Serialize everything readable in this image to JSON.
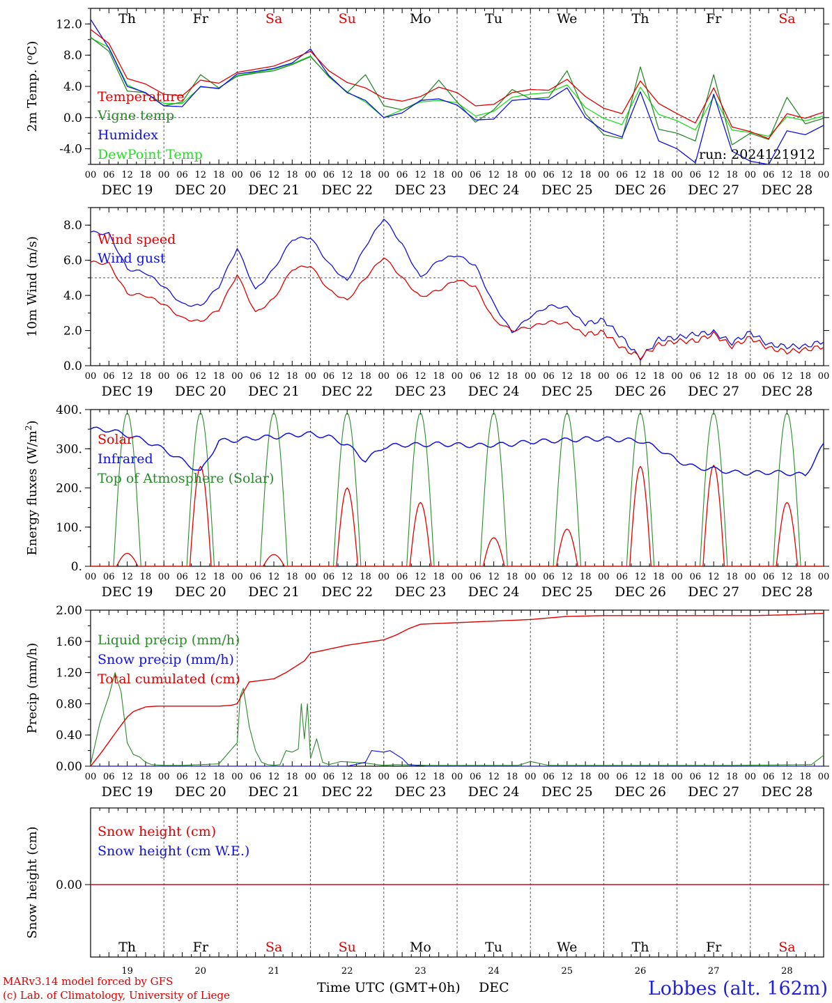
{
  "run_label": "run: 2024121912",
  "footer": {
    "model_line": "MARv3.14 model forced by GFS",
    "credit_line": "(c) Lab. of Climatology, University of Liege",
    "time_label": "Time UTC (GMT+0h)",
    "month_label": "DEC",
    "location": "Lobbes (alt. 162m)"
  },
  "days": [
    {
      "weekday": "Th",
      "weekend": false,
      "date": "DEC 19",
      "num": "19"
    },
    {
      "weekday": "Fr",
      "weekend": false,
      "date": "DEC 20",
      "num": "20"
    },
    {
      "weekday": "Sa",
      "weekend": true,
      "date": "DEC 21",
      "num": "21"
    },
    {
      "weekday": "Su",
      "weekend": true,
      "date": "DEC 22",
      "num": "22"
    },
    {
      "weekday": "Mo",
      "weekend": false,
      "date": "DEC 23",
      "num": "23"
    },
    {
      "weekday": "Tu",
      "weekend": false,
      "date": "DEC 24",
      "num": "24"
    },
    {
      "weekday": "We",
      "weekend": false,
      "date": "DEC 25",
      "num": "25"
    },
    {
      "weekday": "Th",
      "weekend": false,
      "date": "DEC 26",
      "num": "26"
    },
    {
      "weekday": "Fr",
      "weekend": false,
      "date": "DEC 27",
      "num": "27"
    },
    {
      "weekday": "Sa",
      "weekend": true,
      "date": "DEC 28",
      "num": "28"
    }
  ],
  "hour_ticks": [
    "00",
    "06",
    "12",
    "18"
  ],
  "colors": {
    "red": "#e00000",
    "green": "#2a8a2a",
    "blue": "#1010e0",
    "lightgreen": "#22dd22",
    "weekend": "#e00000",
    "axis": "#000000",
    "location": "#2020e0"
  },
  "chart_data": [
    {
      "id": "temp",
      "type": "line",
      "ylabel": "2m Temp. (oC)",
      "ylim": [
        -6,
        14
      ],
      "yticks": [
        -4,
        0,
        4,
        8,
        12
      ],
      "ytick_labels": [
        "-4.0",
        "0.0",
        "4.0",
        "8.0",
        "12.0"
      ],
      "refline": 0,
      "grid": "dashed verticals at midnight",
      "x_hours": [
        0,
        6,
        12,
        18,
        24,
        30,
        36,
        42,
        48,
        54,
        60,
        66,
        72,
        78,
        84,
        90,
        96,
        102,
        108,
        114,
        120,
        126,
        132,
        138,
        144,
        150,
        156,
        162,
        168,
        174,
        180,
        186,
        192,
        198,
        204,
        210,
        216,
        222,
        228,
        234,
        240
      ],
      "series": [
        {
          "name": "Temperature",
          "color": "red",
          "values": [
            11.3,
            9.5,
            5.0,
            4.3,
            3.0,
            2.8,
            4.8,
            4.4,
            5.8,
            6.2,
            6.6,
            7.5,
            8.5,
            6.0,
            4.5,
            3.8,
            2.5,
            2.1,
            2.7,
            3.9,
            3.2,
            1.5,
            1.7,
            3.2,
            3.6,
            3.5,
            4.9,
            2.7,
            1.2,
            0.5,
            4.7,
            1.8,
            0.5,
            -0.7,
            3.8,
            -1.2,
            -1.8,
            -2.7,
            0.5,
            -0.1,
            0.7
          ]
        },
        {
          "name": "Vigne temp",
          "color": "green",
          "values": [
            10.3,
            8.5,
            3.4,
            3.2,
            1.5,
            2.0,
            5.5,
            3.8,
            5.3,
            5.7,
            6.0,
            6.8,
            7.8,
            5.3,
            3.2,
            5.5,
            1.5,
            1.0,
            2.1,
            4.8,
            2.0,
            -0.6,
            1.0,
            3.6,
            2.4,
            2.6,
            6.0,
            0.5,
            -2.2,
            -2.7,
            6.5,
            -1.5,
            -2.0,
            -3.0,
            5.5,
            -3.5,
            -2.0,
            -2.8,
            2.6,
            -0.8,
            -0.1
          ]
        },
        {
          "name": "Humidex",
          "color": "blue",
          "values": [
            12.6,
            8.9,
            4.0,
            3.2,
            1.5,
            1.4,
            4.0,
            3.7,
            5.6,
            5.9,
            6.3,
            7.0,
            8.8,
            5.4,
            3.2,
            2.2,
            0.0,
            0.6,
            2.2,
            2.4,
            1.6,
            -0.3,
            -0.2,
            2.2,
            2.4,
            2.3,
            3.8,
            0.0,
            -1.7,
            -2.5,
            3.3,
            -3.0,
            -4.0,
            -5.8,
            3.0,
            -4.3,
            -5.6,
            -6.0,
            -1.7,
            -2.2,
            -1.0
          ]
        },
        {
          "name": "DewPoint Temp",
          "color": "lightgreen",
          "values": [
            10.2,
            9.0,
            4.2,
            3.1,
            1.8,
            1.8,
            3.9,
            3.8,
            5.4,
            5.8,
            6.2,
            6.9,
            7.9,
            5.2,
            3.3,
            2.0,
            0.0,
            1.0,
            2.0,
            2.2,
            1.9,
            0.2,
            0.8,
            2.6,
            3.0,
            3.2,
            4.2,
            1.3,
            -0.1,
            -0.9,
            3.9,
            0.4,
            -0.4,
            -1.6,
            2.7,
            -1.6,
            -1.9,
            -2.4,
            0.1,
            -0.4,
            0.2
          ]
        }
      ]
    },
    {
      "id": "wind",
      "type": "line",
      "ylabel": "10m Wind (m/s)",
      "ylim": [
        0,
        9
      ],
      "yticks": [
        0,
        2,
        4,
        6,
        8
      ],
      "ytick_labels": [
        "0.0",
        "2.0",
        "4.0",
        "6.0",
        "8.0"
      ],
      "refline": 5,
      "grid": "dashed verticals at midnight",
      "x_hours": [
        0,
        6,
        12,
        18,
        24,
        30,
        36,
        42,
        48,
        54,
        60,
        66,
        72,
        78,
        84,
        90,
        96,
        102,
        108,
        114,
        120,
        126,
        132,
        138,
        144,
        150,
        156,
        162,
        168,
        174,
        180,
        186,
        192,
        198,
        204,
        210,
        216,
        222,
        228,
        234,
        240
      ],
      "series": [
        {
          "name": "Wind speed",
          "color": "red",
          "values": [
            5.9,
            5.8,
            4.1,
            4.0,
            3.5,
            2.7,
            2.5,
            3.2,
            5.2,
            3.0,
            3.8,
            5.5,
            5.7,
            4.3,
            3.7,
            5.0,
            6.2,
            5.0,
            3.9,
            4.3,
            4.9,
            4.5,
            2.6,
            2.0,
            2.2,
            2.5,
            2.4,
            1.8,
            1.9,
            1.0,
            0.5,
            1.2,
            1.4,
            1.4,
            1.8,
            1.1,
            1.6,
            1.0,
            0.8,
            0.9,
            1.1
          ]
        },
        {
          "name": "Wind gust",
          "color": "blue",
          "values": [
            7.6,
            7.5,
            5.5,
            5.3,
            4.5,
            3.5,
            3.4,
            4.5,
            6.7,
            4.3,
            5.5,
            7.2,
            7.3,
            5.8,
            4.8,
            6.8,
            8.4,
            6.9,
            5.0,
            6.0,
            6.3,
            5.7,
            3.5,
            1.9,
            2.8,
            3.4,
            3.3,
            2.4,
            2.6,
            1.6,
            0.4,
            1.5,
            1.6,
            1.8,
            1.9,
            1.3,
            1.9,
            1.2,
            1.1,
            1.1,
            1.4
          ]
        }
      ]
    },
    {
      "id": "energy",
      "type": "line",
      "ylabel": "Energy fluxes (W/m2)",
      "ylim": [
        0,
        400
      ],
      "yticks": [
        0,
        100,
        200,
        300,
        400
      ],
      "ytick_labels": [
        "0.",
        "100.",
        "200.",
        "300.",
        "400."
      ],
      "grid": "dashed verticals at midnight",
      "series": [
        {
          "name": "Solar",
          "color": "red",
          "peaks": [
            33,
            255,
            30,
            200,
            163,
            73,
            95,
            255,
            258,
            163
          ]
        },
        {
          "name": "Infrared",
          "color": "blue",
          "x_hours": [
            0,
            6,
            12,
            18,
            24,
            30,
            36,
            42,
            48,
            54,
            60,
            66,
            72,
            78,
            84,
            90,
            96,
            102,
            108,
            114,
            120,
            126,
            132,
            138,
            144,
            150,
            156,
            162,
            168,
            174,
            180,
            186,
            192,
            198,
            204,
            210,
            216,
            222,
            228,
            234,
            240
          ],
          "values": [
            350,
            348,
            335,
            320,
            298,
            270,
            240,
            320,
            322,
            328,
            330,
            335,
            338,
            330,
            310,
            270,
            305,
            310,
            310,
            312,
            310,
            308,
            310,
            312,
            318,
            320,
            322,
            325,
            325,
            323,
            320,
            300,
            270,
            252,
            248,
            240,
            238,
            240,
            238,
            232,
            310
          ]
        },
        {
          "name": "Top of Atmosphere (Solar)",
          "color": "green",
          "peak": 392
        }
      ]
    },
    {
      "id": "precip",
      "type": "line",
      "ylabel": "Precip (mm/h)",
      "ylim": [
        0,
        2
      ],
      "yticks": [
        0,
        0.4,
        0.8,
        1.2,
        1.6,
        2.0
      ],
      "ytick_labels": [
        "0.00",
        "0.40",
        "0.80",
        "1.20",
        "1.60",
        "2.00"
      ],
      "grid": "dashed verticals at midnight",
      "series": [
        {
          "name": "Liquid precip (mm/h)",
          "color": "green",
          "x_hours": [
            0,
            3,
            6,
            8,
            10,
            12,
            14,
            16,
            18,
            20,
            24,
            30,
            36,
            42,
            48,
            49,
            50,
            52,
            54,
            56,
            58,
            60,
            62,
            64,
            66,
            68,
            69,
            70,
            71,
            72,
            74,
            76,
            78,
            82,
            86,
            90,
            96,
            100,
            110,
            140,
            144,
            150,
            168,
            210,
            236,
            240
          ],
          "values": [
            0.02,
            0.55,
            0.9,
            1.2,
            0.95,
            0.3,
            0.15,
            0.12,
            0.05,
            0.02,
            0.01,
            0.01,
            0.02,
            0.03,
            0.3,
            0.9,
            1.0,
            0.5,
            0.2,
            0.05,
            0.02,
            0.01,
            0.02,
            0.2,
            0.18,
            0.22,
            0.8,
            0.35,
            0.8,
            0.1,
            0.35,
            0.05,
            0.02,
            0.06,
            0.05,
            0.04,
            0.01,
            0.02,
            0.01,
            0.01,
            0.06,
            0.01,
            0.01,
            0.01,
            0.02,
            0.14
          ]
        },
        {
          "name": "Snow precip (mm/h)",
          "color": "blue",
          "x_hours": [
            0,
            84,
            90,
            92,
            96,
            98,
            102,
            104,
            110,
            240
          ],
          "values": [
            0,
            0,
            0.05,
            0.2,
            0.18,
            0.2,
            0.1,
            0.02,
            0,
            0
          ]
        },
        {
          "name": "Total cumulated (cm)",
          "color": "red",
          "x_hours": [
            0,
            4,
            8,
            12,
            14,
            18,
            22,
            24,
            36,
            42,
            46,
            48,
            50,
            52,
            60,
            64,
            70,
            72,
            84,
            96,
            100,
            104,
            108,
            120,
            144,
            156,
            168,
            192,
            216,
            228,
            240
          ],
          "values": [
            0.0,
            0.2,
            0.42,
            0.63,
            0.7,
            0.76,
            0.77,
            0.77,
            0.77,
            0.77,
            0.78,
            0.8,
            0.95,
            1.08,
            1.12,
            1.2,
            1.35,
            1.45,
            1.55,
            1.62,
            1.68,
            1.76,
            1.82,
            1.84,
            1.88,
            1.92,
            1.93,
            1.93,
            1.93,
            1.94,
            1.96
          ]
        }
      ]
    },
    {
      "id": "snow",
      "type": "line",
      "ylabel": "Snow height (cm)",
      "yticks": [
        0
      ],
      "ytick_labels": [
        "0.00"
      ],
      "series": [
        {
          "name": "Snow height (cm)",
          "color": "red",
          "values": [
            0,
            0
          ]
        },
        {
          "name": "Snow height (cm W.E.)",
          "color": "blue",
          "values": [
            0,
            0
          ]
        }
      ]
    }
  ]
}
